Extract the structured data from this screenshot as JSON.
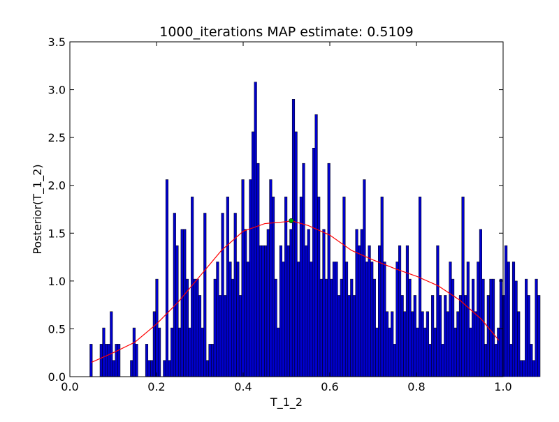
{
  "figure": {
    "background": "#ffffff"
  },
  "chart_data": {
    "type": "bar",
    "title": "1000_iterations MAP estimate: 0.5109",
    "xlabel": "T_1_2",
    "ylabel": "Posterior(T_1_2)",
    "xlim": [
      0.0,
      1.0
    ],
    "ylim": [
      0.0,
      3.5
    ],
    "xticks": [
      "0.0",
      "0.2",
      "0.4",
      "0.6",
      "0.8",
      "1.0"
    ],
    "yticks": [
      "0.0",
      "0.5",
      "1.0",
      "1.5",
      "2.0",
      "2.5",
      "3.0",
      "3.5"
    ],
    "grid": false,
    "histogram": {
      "bin_start": 0.046,
      "bin_width": 0.00584,
      "color": "#0000cc",
      "edge_color": "#000000",
      "values": [
        0.34,
        0,
        0,
        0,
        0.34,
        0.51,
        0.34,
        0.34,
        0.68,
        0.17,
        0.34,
        0.34,
        0,
        0,
        0,
        0,
        0.17,
        0.51,
        0.34,
        0,
        0,
        0,
        0.34,
        0.17,
        0.17,
        0.68,
        1.02,
        0.51,
        0,
        0.17,
        2.06,
        0.17,
        0.51,
        1.71,
        1.37,
        0.51,
        1.54,
        1.54,
        1.02,
        0.51,
        1.88,
        1.02,
        1.02,
        0.85,
        0.51,
        1.71,
        0.17,
        0.34,
        0.34,
        1.02,
        1.2,
        0.85,
        1.71,
        0.85,
        1.88,
        1.2,
        1.02,
        1.71,
        1.2,
        0.85,
        2.06,
        1.54,
        1.2,
        2.06,
        2.56,
        3.08,
        2.23,
        1.37,
        1.37,
        1.37,
        1.54,
        2.06,
        1.88,
        1.02,
        0.51,
        1.37,
        1.2,
        1.88,
        1.37,
        1.54,
        2.9,
        2.56,
        1.2,
        1.88,
        2.23,
        1.37,
        1.54,
        1.2,
        2.39,
        2.74,
        1.88,
        1.02,
        1.54,
        1.02,
        2.23,
        1.02,
        1.2,
        1.2,
        0.85,
        1.02,
        1.88,
        1.2,
        0.85,
        1.02,
        0.85,
        1.54,
        1.37,
        1.54,
        2.06,
        1.2,
        1.37,
        1.2,
        1.02,
        0.51,
        1.37,
        1.88,
        1.2,
        0.68,
        0.51,
        0.68,
        0.34,
        1.2,
        1.37,
        0.85,
        0.68,
        1.37,
        1.02,
        0.68,
        0.85,
        0.51,
        1.88,
        0.68,
        0.51,
        0.68,
        0.34,
        0.85,
        0.51,
        1.37,
        0.85,
        0.34,
        0.85,
        0.68,
        1.2,
        1.02,
        0.51,
        0.68,
        0.85,
        1.88,
        0.85,
        1.2,
        0.51,
        1.02,
        0.68,
        1.2,
        1.54,
        1.02,
        0.34,
        0.85,
        1.02,
        1.02,
        0.34,
        0.51,
        1.02,
        0.85,
        1.37,
        1.2,
        0.34,
        1.2,
        1.0,
        0.68,
        0.17,
        0.17,
        1.02,
        0.85,
        0.34,
        0.17,
        1.02,
        0.85
      ]
    },
    "fit_curve": {
      "color": "#ff0000",
      "x": [
        0.05,
        0.1,
        0.15,
        0.2,
        0.25,
        0.3,
        0.35,
        0.4,
        0.45,
        0.5,
        0.5109,
        0.55,
        0.6,
        0.65,
        0.7,
        0.75,
        0.8,
        0.85,
        0.9,
        0.95,
        0.99
      ],
      "y": [
        0.15,
        0.25,
        0.36,
        0.55,
        0.78,
        1.05,
        1.32,
        1.52,
        1.6,
        1.62,
        1.63,
        1.58,
        1.48,
        1.32,
        1.22,
        1.13,
        1.05,
        0.95,
        0.8,
        0.6,
        0.38
      ]
    },
    "map_marker": {
      "x": 0.5109,
      "y": 1.63,
      "color": "#00aa00"
    }
  }
}
